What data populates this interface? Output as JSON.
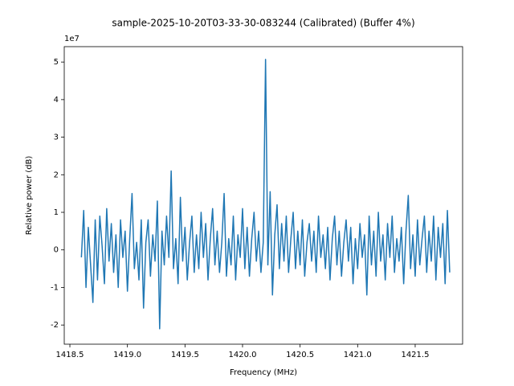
{
  "chart_data": {
    "type": "line",
    "title": "sample-2025-10-20T03-33-30-083244 (Calibrated) (Buffer 4%)",
    "xlabel": "Frequency (MHz)",
    "ylabel": "Relative power (dB)",
    "y_offset_label": "1e7",
    "xlim": [
      1418.451,
      1421.912
    ],
    "ylim": [
      -2.51,
      5.41
    ],
    "xticks": [
      1418.5,
      {
        "value": 1419,
        "label": "1419.0"
      },
      1419.5,
      {
        "value": 1420,
        "label": "1420.0"
      },
      1420.5,
      {
        "value": 1421,
        "label": "1421.0"
      },
      1421.5
    ],
    "yticks": [
      -2,
      -1,
      0,
      1,
      2,
      3,
      4,
      5
    ],
    "grid": false,
    "x": [
      1418.6,
      1418.62,
      1418.64,
      1418.66,
      1418.68,
      1418.7,
      1418.72,
      1418.74,
      1418.76,
      1418.78,
      1418.8,
      1418.82,
      1418.84,
      1418.86,
      1418.88,
      1418.9,
      1418.92,
      1418.94,
      1418.96,
      1418.98,
      1419,
      1419.02,
      1419.04,
      1419.06,
      1419.08,
      1419.1,
      1419.12,
      1419.14,
      1419.16,
      1419.18,
      1419.2,
      1419.22,
      1419.24,
      1419.26,
      1419.28,
      1419.3,
      1419.32,
      1419.34,
      1419.36,
      1419.38,
      1419.4,
      1419.42,
      1419.44,
      1419.46,
      1419.48,
      1419.5,
      1419.52,
      1419.54,
      1419.56,
      1419.58,
      1419.6,
      1419.62,
      1419.64,
      1419.66,
      1419.68,
      1419.7,
      1419.72,
      1419.74,
      1419.76,
      1419.78,
      1419.8,
      1419.82,
      1419.84,
      1419.86,
      1419.88,
      1419.9,
      1419.92,
      1419.94,
      1419.96,
      1419.98,
      1420,
      1420.02,
      1420.04,
      1420.06,
      1420.08,
      1420.1,
      1420.12,
      1420.14,
      1420.16,
      1420.18,
      1420.2,
      1420.22,
      1420.24,
      1420.26,
      1420.28,
      1420.3,
      1420.32,
      1420.34,
      1420.36,
      1420.38,
      1420.4,
      1420.42,
      1420.44,
      1420.46,
      1420.48,
      1420.5,
      1420.52,
      1420.54,
      1420.56,
      1420.58,
      1420.6,
      1420.62,
      1420.64,
      1420.66,
      1420.68,
      1420.7,
      1420.72,
      1420.74,
      1420.76,
      1420.78,
      1420.8,
      1420.82,
      1420.84,
      1420.86,
      1420.88,
      1420.9,
      1420.92,
      1420.94,
      1420.96,
      1420.98,
      1421,
      1421.02,
      1421.04,
      1421.06,
      1421.08,
      1421.1,
      1421.12,
      1421.14,
      1421.16,
      1421.18,
      1421.2,
      1421.22,
      1421.24,
      1421.26,
      1421.28,
      1421.3,
      1421.32,
      1421.34,
      1421.36,
      1421.38,
      1421.4,
      1421.42,
      1421.44,
      1421.46,
      1421.48,
      1421.5,
      1421.52,
      1421.54,
      1421.56,
      1421.58,
      1421.6,
      1421.62,
      1421.64,
      1421.66,
      1421.68,
      1421.7,
      1421.72,
      1421.74,
      1421.76,
      1421.78,
      1421.8
    ],
    "series": [
      {
        "color": "#1f77b4",
        "values": [
          -0.2,
          1.05,
          -1.0,
          0.6,
          -0.4,
          -1.4,
          0.8,
          -0.8,
          0.9,
          0.1,
          -0.9,
          1.1,
          -0.3,
          0.7,
          -0.6,
          0.4,
          -1.0,
          0.8,
          -0.2,
          0.5,
          -1.1,
          0.3,
          1.5,
          -0.5,
          0.2,
          -0.8,
          0.8,
          -1.55,
          0.2,
          0.8,
          -0.7,
          0.4,
          -0.3,
          1.3,
          -2.1,
          0.5,
          -0.4,
          0.9,
          -0.2,
          2.1,
          -0.5,
          0.3,
          -0.9,
          1.4,
          -0.3,
          0.6,
          -0.8,
          0.2,
          0.9,
          -0.6,
          0.4,
          -0.5,
          1.0,
          -0.2,
          0.7,
          -0.8,
          0.3,
          1.1,
          -0.4,
          0.5,
          -0.6,
          0.2,
          1.5,
          -0.7,
          0.3,
          -0.4,
          0.9,
          -0.8,
          0.4,
          -0.2,
          1.1,
          -0.5,
          0.6,
          -0.7,
          0.3,
          1.0,
          -0.3,
          0.5,
          -0.6,
          0.2,
          5.07,
          -0.4,
          1.55,
          -1.2,
          0.4,
          1.2,
          -0.5,
          0.7,
          -0.3,
          0.9,
          -0.6,
          0.3,
          1.0,
          -0.5,
          0.5,
          -0.4,
          0.8,
          -0.7,
          0.2,
          0.7,
          -0.3,
          0.5,
          -0.6,
          0.9,
          -0.2,
          0.4,
          -0.5,
          0.6,
          -0.8,
          0.3,
          0.9,
          -0.4,
          0.5,
          -0.7,
          0.2,
          0.8,
          -0.3,
          0.6,
          -0.9,
          0.3,
          -0.5,
          0.7,
          -0.2,
          0.4,
          -1.2,
          0.9,
          -0.4,
          0.5,
          -0.7,
          1.0,
          -0.3,
          0.4,
          -0.8,
          0.7,
          -0.2,
          0.9,
          -0.6,
          0.3,
          -0.3,
          0.6,
          -0.9,
          0.5,
          1.45,
          -0.5,
          0.4,
          -0.7,
          0.8,
          -0.4,
          0.3,
          0.9,
          -0.6,
          0.5,
          -0.3,
          0.9,
          -0.8,
          0.6,
          -0.2,
          0.7,
          -0.9,
          1.05,
          -0.6
        ]
      }
    ]
  }
}
